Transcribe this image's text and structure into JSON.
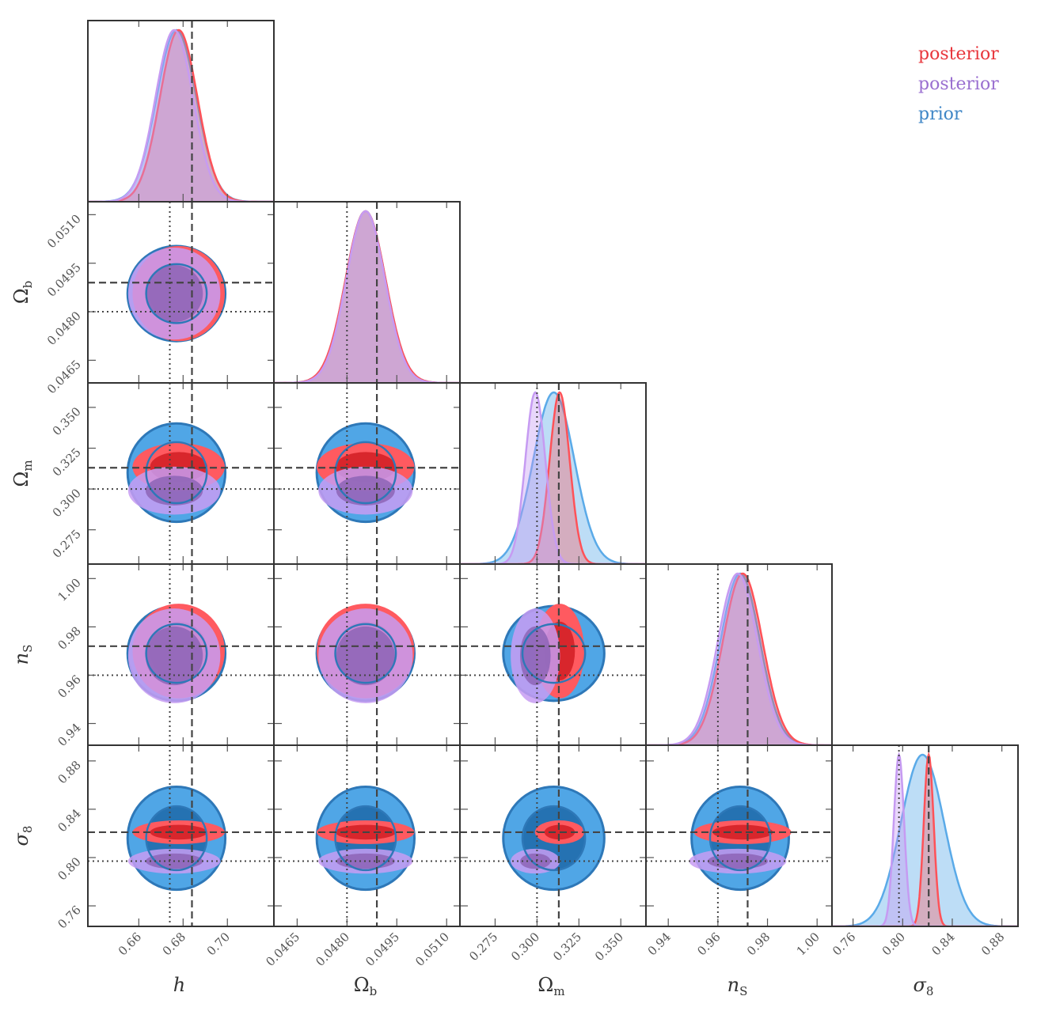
{
  "chart_data": {
    "type": "corner",
    "legend": {
      "placement": "top-right",
      "entries": [
        {
          "label": "posterior",
          "color": "#e8363c"
        },
        {
          "label": "posterior",
          "color": "#9a6fd0"
        },
        {
          "label": "prior",
          "color": "#3f86c6"
        }
      ]
    },
    "parameters": [
      {
        "label": "h",
        "sub": "",
        "range": [
          0.637,
          0.721
        ],
        "ticks": [
          "0.66",
          "0.68",
          "0.70"
        ],
        "truth_dashed": 0.684,
        "truth_dotted": 0.674
      },
      {
        "label": "Ω",
        "sub": "b",
        "range": [
          0.0458,
          0.0514
        ],
        "ticks": [
          "0.0465",
          "0.0480",
          "0.0495",
          "0.0510"
        ],
        "truth_dashed": 0.0489,
        "truth_dotted": 0.048
      },
      {
        "label": "Ω",
        "sub": "m",
        "range": [
          0.254,
          0.365
        ],
        "ticks": [
          "0.275",
          "0.300",
          "0.325",
          "0.350"
        ],
        "truth_dashed": 0.313,
        "truth_dotted": 0.3
      },
      {
        "label": "n",
        "sub": "S",
        "range": [
          0.931,
          1.006
        ],
        "ticks": [
          "0.94",
          "0.96",
          "0.98",
          "1.00"
        ],
        "truth_dashed": 0.972,
        "truth_dotted": 0.96
      },
      {
        "label": "σ",
        "sub": "8",
        "range": [
          0.743,
          0.893
        ],
        "ticks": [
          "0.76",
          "0.80",
          "0.84",
          "0.88"
        ],
        "truth_dashed": 0.821,
        "truth_dotted": 0.797
      }
    ],
    "series": [
      {
        "name": "prior",
        "colors": {
          "line": "#5aaae8",
          "fill1d": "rgba(90,170,232,0.4)",
          "outer": "#50a6e6",
          "inner": "#2572b2",
          "outline": "#2e78b8"
        },
        "mean": [
          0.677,
          0.04856,
          0.31,
          0.969,
          0.816
        ],
        "sigma": [
          0.009,
          0.0006,
          0.0123,
          0.008,
          0.0174
        ]
      },
      {
        "name": "posterior",
        "colors": {
          "line": "#ff5258",
          "fill1d": "rgba(255,82,88,0.35)",
          "outer": "#ff5a60",
          "inner": "#d8262c",
          "outline": "#ff5258"
        },
        "mean": [
          0.678,
          0.04856,
          0.3135,
          0.97,
          0.821
        ],
        "sigma": [
          0.0085,
          0.0006,
          0.006,
          0.008,
          0.004
        ]
      },
      {
        "name": "posterior",
        "colors": {
          "line": "#c69bf2",
          "fill1d": "rgba(198,155,242,0.4)",
          "outer": "#c79cf2",
          "inner": "#8d64b6",
          "outline": "#d7b6f6"
        },
        "mean": [
          0.676,
          0.04856,
          0.299,
          0.968,
          0.797
        ],
        "sigma": [
          0.0085,
          0.00058,
          0.006,
          0.008,
          0.0042
        ]
      }
    ],
    "contour_levels": [
      "68%",
      "95%"
    ]
  }
}
